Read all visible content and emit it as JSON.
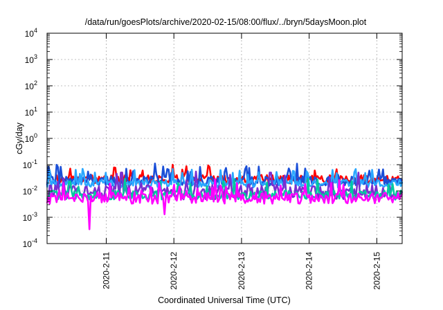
{
  "chart_data": {
    "type": "line",
    "title": "/data/run/goesPlots/archive/2020-02-15/08:00/flux/../bryn/5daysMoon.plot",
    "xlabel": "Coordinated Universal Time (UTC)",
    "ylabel": "cGy/day",
    "yscale": "log",
    "ylim": [
      0.0001,
      10000
    ],
    "y_ticks": [
      {
        "value": 0.0001,
        "base": "10",
        "exp": "-4"
      },
      {
        "value": 0.001,
        "base": "10",
        "exp": "-3"
      },
      {
        "value": 0.01,
        "base": "10",
        "exp": "-2"
      },
      {
        "value": 0.1,
        "base": "10",
        "exp": "-1"
      },
      {
        "value": 1,
        "base": "10",
        "exp": "0"
      },
      {
        "value": 10,
        "base": "10",
        "exp": "1"
      },
      {
        "value": 100,
        "base": "10",
        "exp": "2"
      },
      {
        "value": 1000,
        "base": "10",
        "exp": "3"
      },
      {
        "value": 10000,
        "base": "10",
        "exp": "4"
      }
    ],
    "xlim": [
      "2020-02-10T03:00",
      "2020-02-15T09:00"
    ],
    "x_ticks": [
      "2020-2-11",
      "2020-2-12",
      "2020-2-13",
      "2020-2-14",
      "2020-2-15"
    ],
    "grid": true,
    "legend": "none",
    "series": [
      {
        "color": "#ff0000",
        "base": 0.028,
        "spread": 0.32,
        "spikes": [
          [
            1.85,
            0.1
          ],
          [
            2.05,
            0.045
          ],
          [
            3.95,
            0.06
          ]
        ]
      },
      {
        "color": "#1a4fd8",
        "base": 0.024,
        "spread": 0.36,
        "spikes": [
          [
            0.6,
            0.055
          ],
          [
            1.8,
            0.065
          ]
        ]
      },
      {
        "color": "#2aa7ff",
        "base": 0.019,
        "spread": 0.3,
        "spikes": [
          [
            0.7,
            0.05
          ]
        ]
      },
      {
        "color": "#7a2fd0",
        "base": 0.009,
        "spread": 0.55,
        "spikes": [
          [
            1.1,
            0.05
          ],
          [
            2.2,
            0.055
          ],
          [
            3.3,
            0.05
          ],
          [
            4.6,
            0.05
          ]
        ]
      },
      {
        "color": "#00c8a0",
        "base": 0.007,
        "spread": 0.35,
        "spikes": []
      },
      {
        "color": "#ff00ff",
        "base": 0.0055,
        "spread": 0.45,
        "spikes": [
          [
            0.25,
            0.02
          ],
          [
            1.65,
            0.02
          ],
          [
            2.8,
            0.02
          ],
          [
            4.2,
            0.02
          ]
        ],
        "dips": [
          [
            0.63,
            0.00035
          ],
          [
            1.73,
            0.0013
          ]
        ]
      }
    ]
  }
}
